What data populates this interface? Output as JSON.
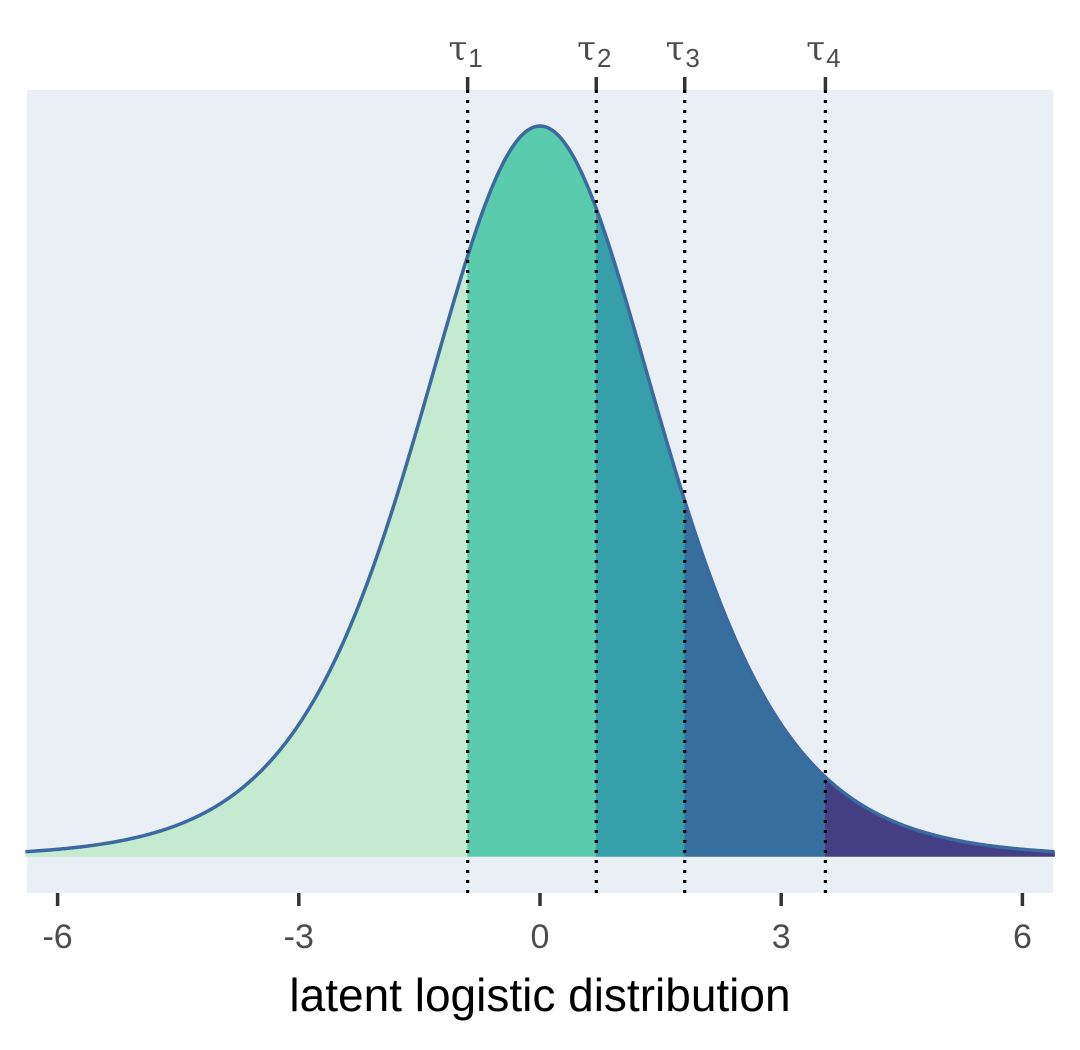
{
  "chart_data": {
    "type": "area",
    "title": "",
    "xlabel": "latent logistic distribution",
    "ylabel": "",
    "xlim": [
      -6.4,
      6.4
    ],
    "ylim": [
      -0.012,
      0.2575
    ],
    "x_ticks": [
      -6,
      -3,
      0,
      3,
      6
    ],
    "x_tick_labels": [
      "-6",
      "-3",
      "0",
      "3",
      "6"
    ],
    "grid": false,
    "legend": "none",
    "curve": {
      "distribution": "logistic",
      "location": 0,
      "scale": 1,
      "color": "#3a6aa0"
    },
    "thresholds": [
      {
        "symbol": "τ",
        "subscript": "1",
        "x": -0.9
      },
      {
        "symbol": "τ",
        "subscript": "2",
        "x": 0.7
      },
      {
        "symbol": "τ",
        "subscript": "3",
        "x": 1.8
      },
      {
        "symbol": "τ",
        "subscript": "4",
        "x": 3.55
      }
    ],
    "regions": [
      {
        "from": -6.4,
        "to": -0.9,
        "color": "#c4ead0"
      },
      {
        "from": -0.9,
        "to": 0.7,
        "color": "#5bcbae"
      },
      {
        "from": 0.7,
        "to": 1.8,
        "color": "#369faa"
      },
      {
        "from": 1.8,
        "to": 3.55,
        "color": "#376f9e"
      },
      {
        "from": 3.55,
        "to": 6.4,
        "color": "#433f82"
      }
    ],
    "panel_background": "#eaeff6"
  }
}
